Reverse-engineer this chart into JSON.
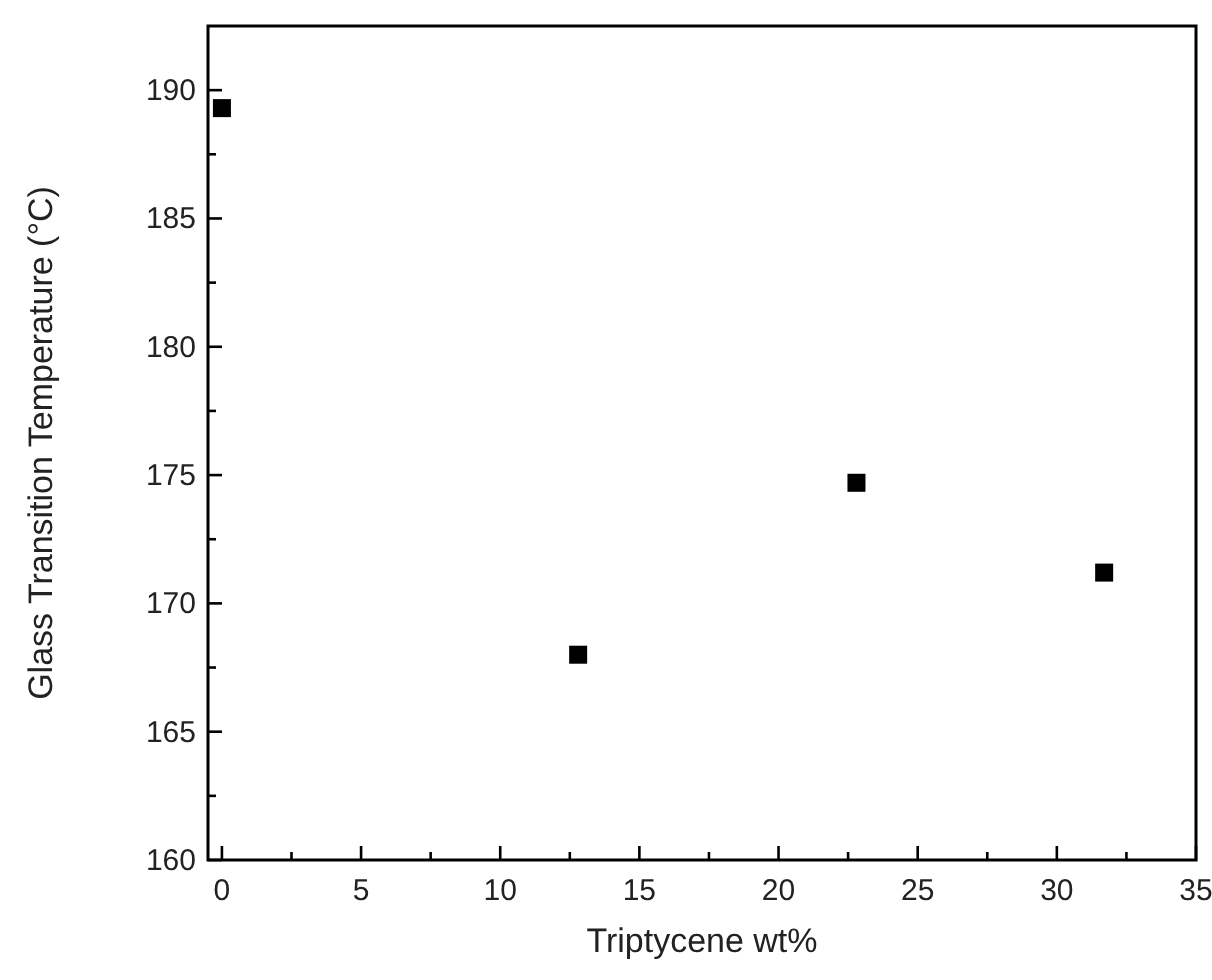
{
  "chart_data": {
    "type": "scatter",
    "xlabel": "Triptycene wt%",
    "ylabel": "Glass Transition Temperature (°C)",
    "x": [
      0,
      12.8,
      22.8,
      31.7
    ],
    "series": [
      {
        "color": "#000000",
        "values": [
          189.3,
          168.0,
          174.7,
          171.2
        ]
      }
    ],
    "xlim": [
      -0.5,
      35
    ],
    "ylim": [
      160,
      192.5
    ],
    "xticks": [
      0,
      {
        "value": 2.5,
        "label": null
      },
      5,
      {
        "value": 7.5,
        "label": null
      },
      10,
      {
        "value": 12.5,
        "label": null
      },
      15,
      {
        "value": 17.5,
        "label": null
      },
      20,
      {
        "value": 22.5,
        "label": null
      },
      25,
      {
        "value": 27.5,
        "label": null
      },
      30,
      {
        "value": 32.5,
        "label": null
      },
      35
    ],
    "yticks": [
      160,
      {
        "value": 162.5,
        "label": null
      },
      165,
      {
        "value": 167.5,
        "label": null
      },
      170,
      {
        "value": 172.5,
        "label": null
      },
      175,
      {
        "value": 177.5,
        "label": null
      },
      180,
      {
        "value": 182.5,
        "label": null
      },
      185,
      {
        "value": 187.5,
        "label": null
      },
      190
    ],
    "marker": "square",
    "grid": false
  }
}
